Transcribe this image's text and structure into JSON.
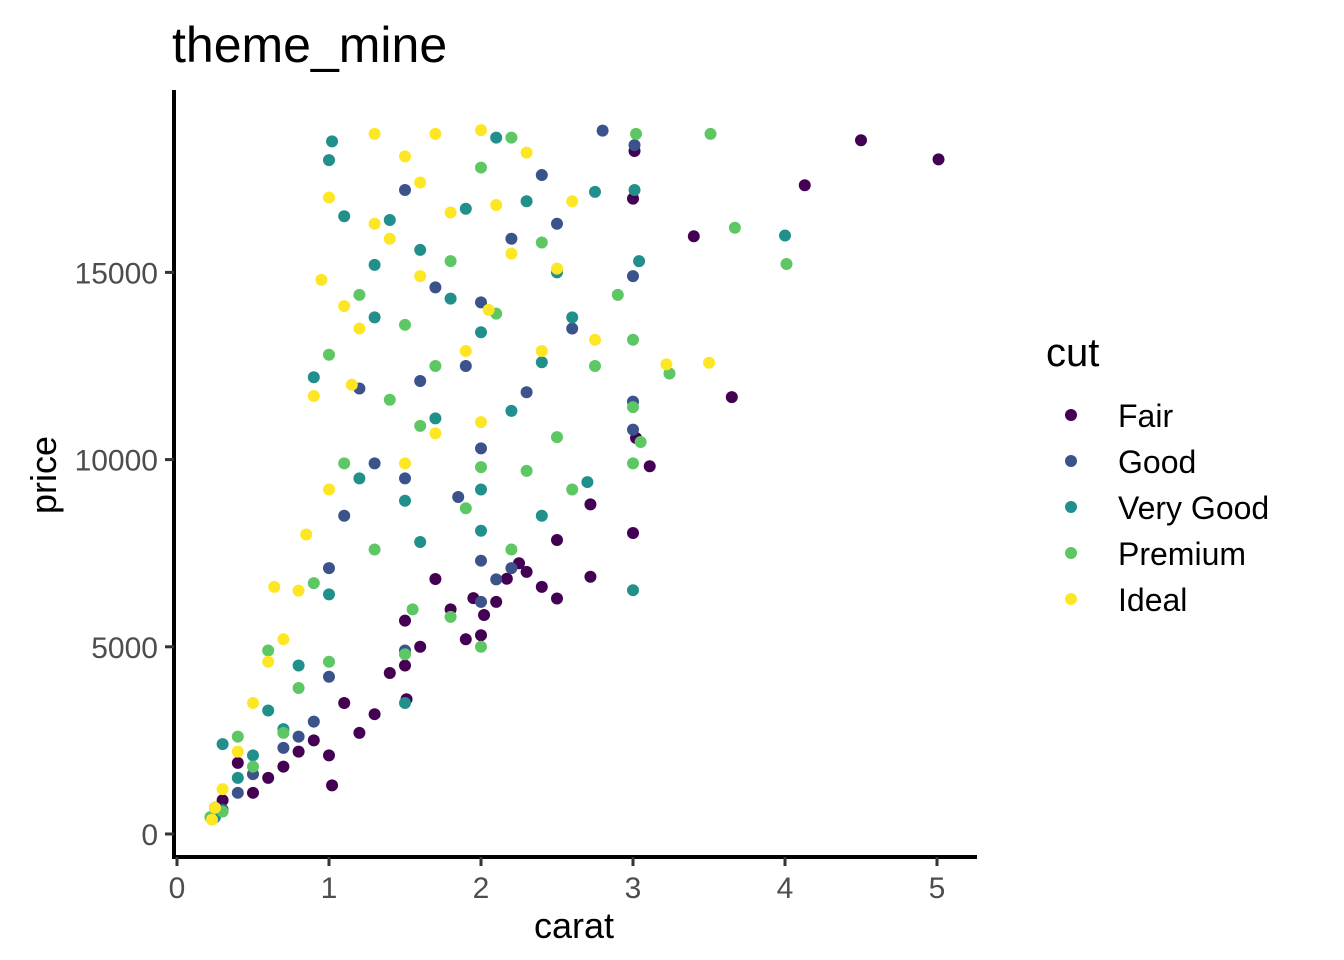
{
  "chart_data": {
    "type": "scatter",
    "title": "theme_mine",
    "xlabel": "carat",
    "ylabel": "price",
    "xlim": [
      0,
      5.25
    ],
    "ylim": [
      0,
      19000
    ],
    "x_ticks": [
      0,
      1,
      2,
      3,
      4,
      5
    ],
    "y_ticks": [
      0,
      5000,
      10000,
      15000
    ],
    "grid": false,
    "legend": {
      "title": "cut",
      "position": "right",
      "entries": [
        {
          "name": "Fair",
          "color": "#440154"
        },
        {
          "name": "Good",
          "color": "#3B528B"
        },
        {
          "name": "Very Good",
          "color": "#21908C"
        },
        {
          "name": "Premium",
          "color": "#5DC863"
        },
        {
          "name": "Ideal",
          "color": "#FDE725"
        }
      ]
    },
    "series": [
      {
        "name": "Fair",
        "points": [
          [
            5.01,
            18018
          ],
          [
            4.5,
            18531
          ],
          [
            4.13,
            17329
          ],
          [
            3.4,
            15964
          ],
          [
            3.65,
            11668
          ],
          [
            3.11,
            9823
          ],
          [
            3.02,
            10577
          ],
          [
            3.01,
            18242
          ],
          [
            3.0,
            16970
          ],
          [
            3.0,
            8040
          ],
          [
            2.72,
            8803
          ],
          [
            2.72,
            6870
          ],
          [
            2.5,
            6290
          ],
          [
            2.5,
            7854
          ],
          [
            2.25,
            7232
          ],
          [
            2.17,
            6817
          ],
          [
            2.02,
            5850
          ],
          [
            2.0,
            5309
          ],
          [
            1.95,
            6300
          ],
          [
            1.7,
            6810
          ],
          [
            1.5,
            5700
          ],
          [
            1.5,
            4500
          ],
          [
            1.51,
            3600
          ],
          [
            1.3,
            3200
          ],
          [
            1.2,
            2700
          ],
          [
            1.02,
            1300
          ],
          [
            1.0,
            2100
          ],
          [
            0.9,
            2500
          ],
          [
            0.7,
            1800
          ],
          [
            0.5,
            1100
          ],
          [
            0.4,
            1900
          ],
          [
            0.3,
            900
          ],
          [
            0.25,
            700
          ],
          [
            0.23,
            400
          ],
          [
            2.3,
            7000
          ],
          [
            2.4,
            6600
          ],
          [
            2.1,
            6200
          ],
          [
            1.8,
            6000
          ],
          [
            1.9,
            5200
          ],
          [
            1.6,
            5000
          ],
          [
            1.4,
            4300
          ],
          [
            1.1,
            3500
          ],
          [
            0.8,
            2200
          ],
          [
            0.6,
            1500
          ]
        ]
      },
      {
        "name": "Good",
        "points": [
          [
            2.8,
            18788
          ],
          [
            3.01,
            18400
          ],
          [
            3.0,
            14900
          ],
          [
            3.0,
            11548
          ],
          [
            3.0,
            10800
          ],
          [
            2.5,
            16300
          ],
          [
            2.4,
            17600
          ],
          [
            2.2,
            15900
          ],
          [
            2.0,
            14200
          ],
          [
            2.0,
            10300
          ],
          [
            2.0,
            7300
          ],
          [
            2.0,
            6200
          ],
          [
            1.9,
            12500
          ],
          [
            1.7,
            14600
          ],
          [
            1.5,
            17200
          ],
          [
            1.5,
            9500
          ],
          [
            1.5,
            4900
          ],
          [
            1.2,
            11900
          ],
          [
            1.1,
            8500
          ],
          [
            1.0,
            7100
          ],
          [
            1.0,
            4200
          ],
          [
            0.9,
            3000
          ],
          [
            0.8,
            2600
          ],
          [
            0.7,
            2300
          ],
          [
            0.5,
            1600
          ],
          [
            0.4,
            1100
          ],
          [
            0.3,
            650
          ],
          [
            0.23,
            400
          ],
          [
            2.1,
            6800
          ],
          [
            2.2,
            7100
          ],
          [
            1.3,
            9900
          ],
          [
            1.6,
            12100
          ],
          [
            1.85,
            9000
          ],
          [
            2.6,
            13500
          ],
          [
            2.3,
            11800
          ]
        ]
      },
      {
        "name": "Very Good",
        "points": [
          [
            4.0,
            15984
          ],
          [
            3.04,
            15300
          ],
          [
            3.01,
            17200
          ],
          [
            3.0,
            6512
          ],
          [
            2.75,
            17150
          ],
          [
            2.6,
            13800
          ],
          [
            2.5,
            15000
          ],
          [
            2.4,
            12600
          ],
          [
            2.3,
            16900
          ],
          [
            2.2,
            11300
          ],
          [
            2.1,
            18600
          ],
          [
            2.0,
            13400
          ],
          [
            2.0,
            9200
          ],
          [
            1.9,
            16700
          ],
          [
            1.8,
            14300
          ],
          [
            1.7,
            11100
          ],
          [
            1.6,
            15600
          ],
          [
            1.5,
            3500
          ],
          [
            1.5,
            8900
          ],
          [
            1.4,
            16400
          ],
          [
            1.3,
            13800
          ],
          [
            1.2,
            9500
          ],
          [
            1.1,
            16500
          ],
          [
            1.0,
            18000
          ],
          [
            1.0,
            6400
          ],
          [
            0.9,
            12200
          ],
          [
            0.8,
            4500
          ],
          [
            0.7,
            2800
          ],
          [
            0.6,
            3300
          ],
          [
            0.5,
            2100
          ],
          [
            0.4,
            1500
          ],
          [
            0.3,
            2400
          ],
          [
            0.25,
            450
          ],
          [
            1.02,
            18500
          ],
          [
            1.3,
            15200
          ],
          [
            2.4,
            8500
          ],
          [
            2.7,
            9400
          ],
          [
            1.6,
            7800
          ],
          [
            2.0,
            8100
          ]
        ]
      },
      {
        "name": "Premium",
        "points": [
          [
            4.01,
            15223
          ],
          [
            3.67,
            16193
          ],
          [
            3.51,
            18701
          ],
          [
            3.24,
            12300
          ],
          [
            3.05,
            10469
          ],
          [
            3.02,
            18700
          ],
          [
            3.0,
            13200
          ],
          [
            3.0,
            11400
          ],
          [
            3.0,
            9900
          ],
          [
            2.9,
            14400
          ],
          [
            2.75,
            12500
          ],
          [
            2.5,
            10600
          ],
          [
            2.4,
            15800
          ],
          [
            2.3,
            9700
          ],
          [
            2.2,
            18600
          ],
          [
            2.1,
            13900
          ],
          [
            2.0,
            5000
          ],
          [
            2.0,
            17800
          ],
          [
            2.0,
            9800
          ],
          [
            1.9,
            8700
          ],
          [
            1.8,
            15300
          ],
          [
            1.7,
            12500
          ],
          [
            1.6,
            10900
          ],
          [
            1.55,
            6000
          ],
          [
            1.5,
            13600
          ],
          [
            1.5,
            4800
          ],
          [
            1.4,
            11600
          ],
          [
            1.3,
            7600
          ],
          [
            1.2,
            14400
          ],
          [
            1.1,
            9900
          ],
          [
            1.0,
            12800
          ],
          [
            1.0,
            4600
          ],
          [
            0.9,
            6700
          ],
          [
            0.8,
            3900
          ],
          [
            0.7,
            2700
          ],
          [
            0.6,
            4900
          ],
          [
            0.5,
            1800
          ],
          [
            0.4,
            2600
          ],
          [
            0.3,
            600
          ],
          [
            0.22,
            450
          ],
          [
            2.6,
            9200
          ],
          [
            2.2,
            7600
          ],
          [
            1.8,
            5800
          ]
        ]
      },
      {
        "name": "Ideal",
        "points": [
          [
            3.5,
            12587
          ],
          [
            3.22,
            12545
          ],
          [
            2.75,
            13200
          ],
          [
            2.6,
            16900
          ],
          [
            2.5,
            15100
          ],
          [
            2.4,
            12900
          ],
          [
            2.3,
            18200
          ],
          [
            2.2,
            15500
          ],
          [
            2.1,
            16800
          ],
          [
            2.0,
            18800
          ],
          [
            2.0,
            11000
          ],
          [
            1.9,
            12900
          ],
          [
            1.8,
            16600
          ],
          [
            1.7,
            18700
          ],
          [
            1.6,
            14900
          ],
          [
            1.5,
            18100
          ],
          [
            1.5,
            9900
          ],
          [
            1.4,
            15900
          ],
          [
            1.3,
            16300
          ],
          [
            1.2,
            13500
          ],
          [
            1.1,
            14100
          ],
          [
            1.0,
            17000
          ],
          [
            1.0,
            9200
          ],
          [
            0.9,
            11700
          ],
          [
            0.8,
            6500
          ],
          [
            0.7,
            5200
          ],
          [
            0.6,
            4600
          ],
          [
            0.5,
            3500
          ],
          [
            0.4,
            2200
          ],
          [
            0.3,
            1200
          ],
          [
            0.25,
            700
          ],
          [
            0.23,
            380
          ],
          [
            0.64,
            6600
          ],
          [
            1.3,
            18700
          ],
          [
            1.7,
            10700
          ],
          [
            0.95,
            14800
          ],
          [
            1.15,
            12000
          ],
          [
            1.6,
            17400
          ],
          [
            2.05,
            14000
          ],
          [
            0.85,
            8000
          ]
        ]
      }
    ]
  }
}
